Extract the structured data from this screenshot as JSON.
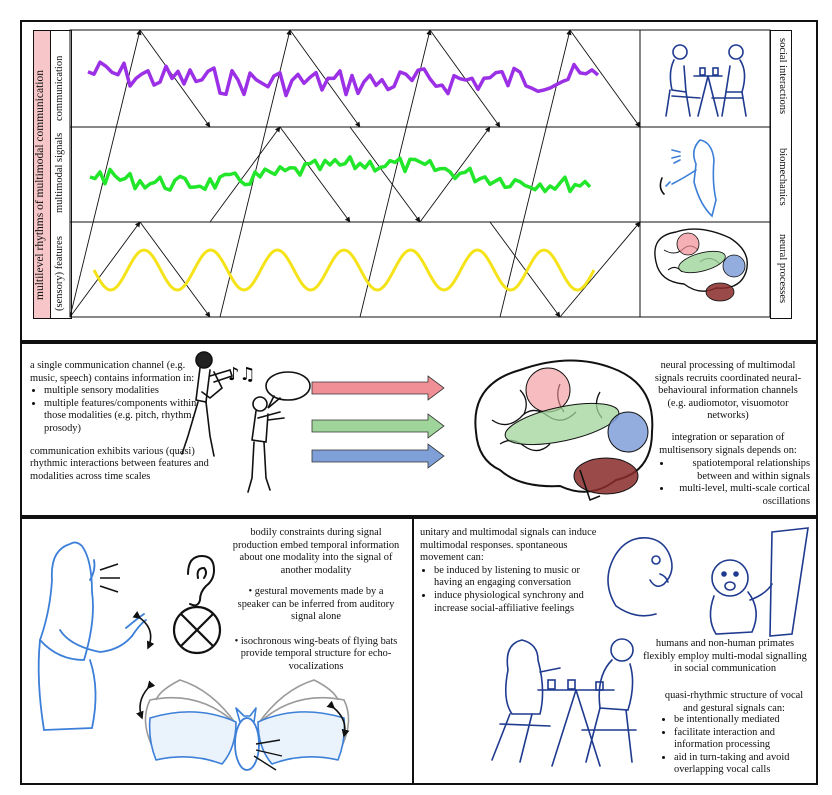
{
  "top": {
    "main_label": "multilevel rhythms of multimodal communication",
    "row_labels": [
      "communication",
      "multimodal signals",
      "(sensory) features"
    ],
    "right_labels": [
      "social interactions",
      "biomechanics",
      "neural processes"
    ]
  },
  "middle": {
    "left_intro": "a single communication channel (e.g. music, speech) contains information in:",
    "left_bullets": [
      "multiple sensory modalities",
      "multiple features/components within those modalities (e.g. pitch, rhythm, prosody)"
    ],
    "left_outro": "communication exhibits various (quasi) rhythmic interactions between features and modalities across time scales",
    "right_top": "neural processing of multimodal signals recruits coordinated neural-behavioural information channels (e.g. audiomotor, visuomotor networks)",
    "right_mid": "integration or separation of multisensory signals depends on:",
    "right_bullets": [
      "spatiotemporal relationships between and within signals",
      "multi-level, multi-scale cortical oscillations"
    ],
    "arrow_colors": [
      "#f08f95",
      "#9fd49a",
      "#7f9fd8"
    ]
  },
  "bottom_left": {
    "intro": "bodily constraints during signal production embed temporal information about one modality into the signal of another modality",
    "bullets": [
      "gestural movements made by a speaker can be inferred from auditory signal alone",
      "isochronous wing-beats of flying bats provide temporal structure for echo-vocalizations"
    ]
  },
  "bottom_right": {
    "intro": "unitary and multimodal signals can induce multimodal responses. spontaneous movement can:",
    "bullets": [
      "be induced by listening to music or having an engaging conversation",
      "induce physiological synchrony and increase social-affiliative feelings"
    ],
    "primates": "humans and non-human primates flexibly employ multi-modal signalling in social communication",
    "quasi_intro": "quasi-rhythmic structure of vocal and gestural signals can:",
    "quasi_bullets": [
      "be intentionally mediated",
      "facilitate interaction and information processing",
      "aid in turn-taking and avoid overlapping vocal calls"
    ]
  },
  "colors": {
    "purple": "#9b30e6",
    "green": "#22e62a",
    "yellow": "#f5e31a",
    "pink_label": "#f6c6c8",
    "line_art": "#1f3a8f",
    "light_blue": "#3c7fd8"
  }
}
